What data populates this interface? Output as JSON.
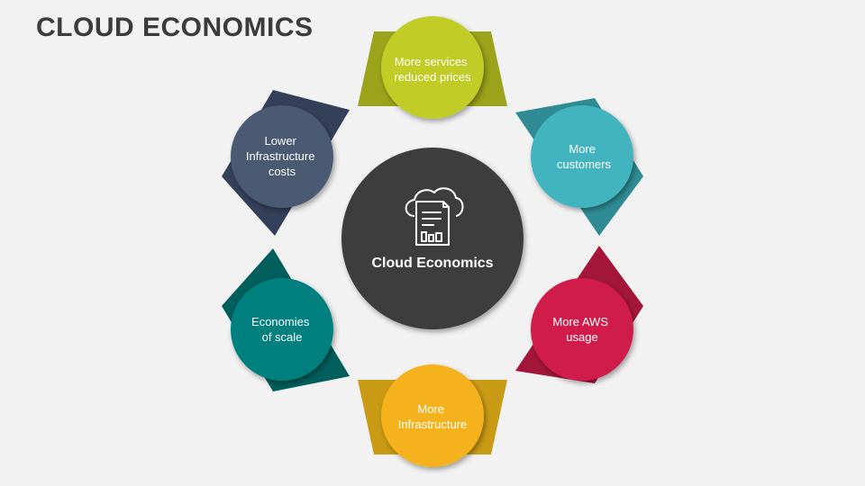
{
  "title": "CLOUD ECONOMICS",
  "center": {
    "label": "Cloud Economics",
    "color": "#3d3d3d",
    "icon": "cloud-document-chart-icon"
  },
  "nodes": [
    {
      "id": "services",
      "lines": [
        "More services",
        "reduced prices"
      ],
      "circle": "#c2cc26",
      "shape": "#9aa31a"
    },
    {
      "id": "customers",
      "lines": [
        "More",
        "customers"
      ],
      "circle": "#43b4c0",
      "shape": "#2f8c95"
    },
    {
      "id": "aws",
      "lines": [
        "More AWS",
        "usage"
      ],
      "circle": "#cf1c4c",
      "shape": "#a3163a"
    },
    {
      "id": "infrastructure",
      "lines": [
        "More",
        "Infrastructure"
      ],
      "circle": "#f5b21b",
      "shape": "#c99a14"
    },
    {
      "id": "scale",
      "lines": [
        "Economies",
        "of scale"
      ],
      "circle": "#007f7f",
      "shape": "#005e5c"
    },
    {
      "id": "costs",
      "lines": [
        "Lower",
        "Infrastructure",
        "costs"
      ],
      "circle": "#4a5a72",
      "shape": "#34405a"
    }
  ]
}
